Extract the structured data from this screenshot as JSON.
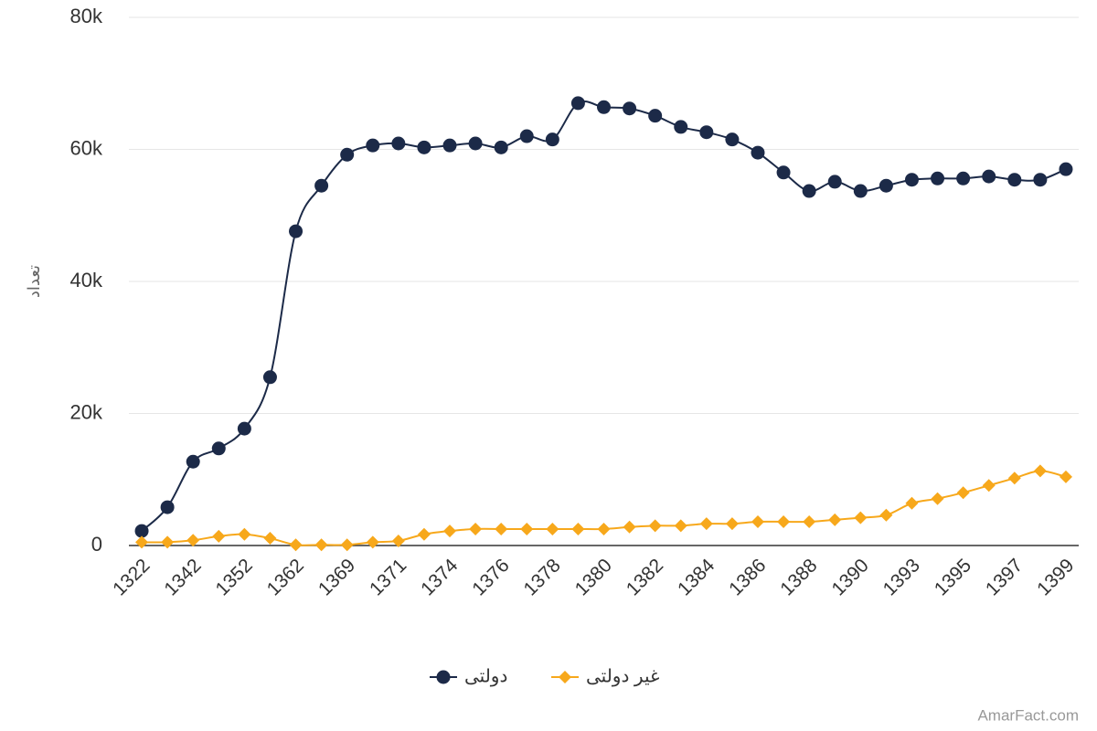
{
  "chart_data": {
    "type": "line",
    "y_axis_title": "تعداد",
    "watermark": "AmarFact.com",
    "categories": [
      "1322",
      null,
      "1342",
      null,
      "1352",
      null,
      "1362",
      null,
      "1369",
      null,
      "1371",
      null,
      "1374",
      null,
      "1376",
      null,
      "1378",
      null,
      "1380",
      null,
      "1382",
      null,
      "1384",
      null,
      "1386",
      null,
      "1388",
      null,
      "1390",
      null,
      "1393",
      null,
      "1395",
      null,
      "1397",
      null,
      "1399"
    ],
    "series": [
      {
        "name": "دولتی",
        "color": "#1c2a48",
        "marker": "circle",
        "values": [
          2200,
          5800,
          12700,
          14700,
          17700,
          25500,
          47600,
          54500,
          59200,
          60600,
          60900,
          60300,
          60600,
          60900,
          60300,
          62000,
          61500,
          67000,
          66400,
          66200,
          65100,
          63400,
          62600,
          61500,
          59500,
          56500,
          53700,
          55100,
          53700,
          54500,
          55400,
          55600,
          55600,
          55900,
          55400,
          55400,
          57000
        ]
      },
      {
        "name": "غیر دولتی",
        "color": "#f7a81b",
        "marker": "diamond",
        "values": [
          500,
          500,
          800,
          1400,
          1700,
          1100,
          100,
          100,
          100,
          500,
          700,
          1700,
          2200,
          2500,
          2500,
          2500,
          2500,
          2500,
          2500,
          2800,
          3000,
          3000,
          3300,
          3300,
          3600,
          3600,
          3600,
          3900,
          4200,
          4600,
          6400,
          7100,
          8000,
          9100,
          10200,
          11300,
          10400
        ]
      }
    ],
    "ylim": [
      0,
      80000
    ],
    "yticks": [
      0,
      {
        "value": 20000,
        "label": "20k"
      },
      {
        "value": 40000,
        "label": "40k"
      },
      {
        "value": 60000,
        "label": "60k"
      },
      {
        "value": 80000,
        "label": "80k"
      }
    ],
    "grid": true,
    "legend": "bottom"
  }
}
